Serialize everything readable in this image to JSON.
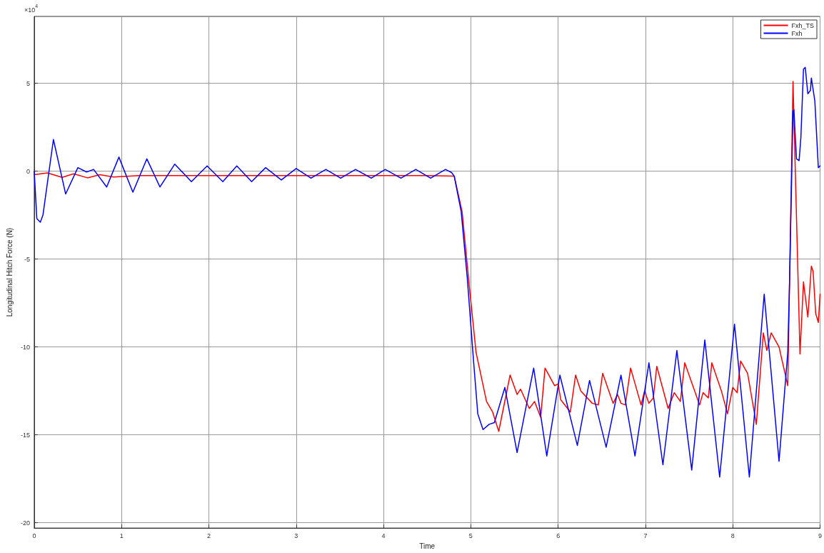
{
  "chart_data": {
    "type": "line",
    "xlabel": "Time",
    "ylabel": "Longitudinal Hitch Force (N)",
    "annotations": [
      "×10$^{4}$"
    ],
    "xlim": [
      0,
      9
    ],
    "xticks": [
      0,
      1,
      2,
      3,
      4,
      5,
      6,
      7,
      8,
      9
    ],
    "ylim": [
      -20.3,
      8.8
    ],
    "yticks": [
      -20,
      -15,
      -10,
      -5,
      0,
      5
    ],
    "grid": true,
    "legend": "top right",
    "marker": "none",
    "line_style": "solid",
    "series": [
      {
        "name": "Fxh_TS",
        "color": "#ff0000",
        "x": [
          0,
          0.15,
          0.32,
          0.45,
          0.61,
          0.75,
          0.91,
          1.2,
          1.6,
          2.0,
          2.5,
          3.0,
          3.5,
          4.0,
          4.5,
          4.81,
          4.9,
          4.99,
          5.06,
          5.18,
          5.25,
          5.32,
          5.45,
          5.53,
          5.57,
          5.67,
          5.73,
          5.8,
          5.85,
          5.96,
          6.0,
          6.03,
          6.14,
          6.2,
          6.26,
          6.39,
          6.46,
          6.51,
          6.63,
          6.68,
          6.72,
          6.77,
          6.83,
          6.95,
          6.99,
          7.04,
          7.09,
          7.13,
          7.26,
          7.33,
          7.4,
          7.45,
          7.62,
          7.66,
          7.72,
          7.76,
          7.87,
          7.94,
          8.0,
          8.05,
          8.09,
          8.17,
          8.27,
          8.35,
          8.39,
          8.44,
          8.53,
          8.63,
          8.69,
          8.77,
          8.81,
          8.86,
          8.9,
          8.92,
          8.95,
          8.98,
          9.0
        ],
        "values": [
          -0.2,
          -0.1,
          -0.35,
          -0.15,
          -0.38,
          -0.2,
          -0.33,
          -0.25,
          -0.25,
          -0.25,
          -0.25,
          -0.25,
          -0.25,
          -0.25,
          -0.25,
          -0.28,
          -2.3,
          -6.9,
          -10.3,
          -13.1,
          -13.7,
          -14.8,
          -11.6,
          -12.7,
          -12.4,
          -13.5,
          -13.1,
          -14.0,
          -11.2,
          -12.2,
          -12.1,
          -13.0,
          -13.7,
          -11.6,
          -12.5,
          -13.2,
          -13.3,
          -11.5,
          -13.2,
          -12.7,
          -13.2,
          -13.3,
          -11.2,
          -13.3,
          -12.5,
          -13.2,
          -12.9,
          -11.1,
          -13.5,
          -12.6,
          -13.1,
          -10.9,
          -13.3,
          -12.6,
          -12.9,
          -10.9,
          -12.5,
          -13.8,
          -12.3,
          -12.6,
          -10.8,
          -11.5,
          -14.4,
          -9.2,
          -10.2,
          -9.2,
          -10.0,
          -12.2,
          5.1,
          -10.4,
          -6.3,
          -8.3,
          -5.4,
          -5.7,
          -8.1,
          -8.6,
          -7.0
        ]
      },
      {
        "name": "Fxh",
        "color": "#0000ff",
        "x": [
          0,
          0.03,
          0.07,
          0.1,
          0.22,
          0.36,
          0.5,
          0.6,
          0.68,
          0.83,
          0.97,
          1.13,
          1.29,
          1.44,
          1.61,
          1.8,
          1.98,
          2.16,
          2.32,
          2.49,
          2.65,
          2.83,
          3.0,
          3.17,
          3.34,
          3.51,
          3.68,
          3.86,
          4.02,
          4.2,
          4.37,
          4.54,
          4.71,
          4.78,
          4.81,
          4.89,
          4.96,
          5.03,
          5.08,
          5.14,
          5.21,
          5.27,
          5.39,
          5.53,
          5.72,
          5.87,
          6.02,
          6.22,
          6.36,
          6.55,
          6.72,
          6.88,
          7.04,
          7.2,
          7.36,
          7.53,
          7.68,
          7.85,
          8.02,
          8.19,
          8.36,
          8.53,
          8.63,
          8.65,
          8.69,
          8.7,
          8.73,
          8.76,
          8.78,
          8.81,
          8.83,
          8.86,
          8.89,
          8.9,
          8.94,
          8.98,
          9.0
        ],
        "values": [
          0,
          -2.7,
          -2.9,
          -2.5,
          1.8,
          -1.3,
          0.2,
          -0.05,
          0.1,
          -0.9,
          0.8,
          -1.2,
          0.7,
          -0.9,
          0.4,
          -0.6,
          0.3,
          -0.6,
          0.3,
          -0.6,
          0.2,
          -0.5,
          0.15,
          -0.4,
          0.1,
          -0.4,
          0.1,
          -0.4,
          0.1,
          -0.4,
          0.1,
          -0.4,
          0.1,
          -0.08,
          -0.28,
          -2.3,
          -6.1,
          -10.7,
          -13.8,
          -14.7,
          -14.4,
          -14.3,
          -12.3,
          -16.0,
          -11.2,
          -16.2,
          -11.6,
          -15.6,
          -11.9,
          -15.7,
          -11.6,
          -16.2,
          -10.9,
          -16.7,
          -10.2,
          -17.0,
          -9.6,
          -17.4,
          -8.7,
          -17.4,
          -7.0,
          -16.5,
          -10.3,
          -6.4,
          3.4,
          3.5,
          0.7,
          0.6,
          1.9,
          5.8,
          5.9,
          4.4,
          4.6,
          5.3,
          4.0,
          0.2,
          0.3
        ]
      }
    ]
  }
}
